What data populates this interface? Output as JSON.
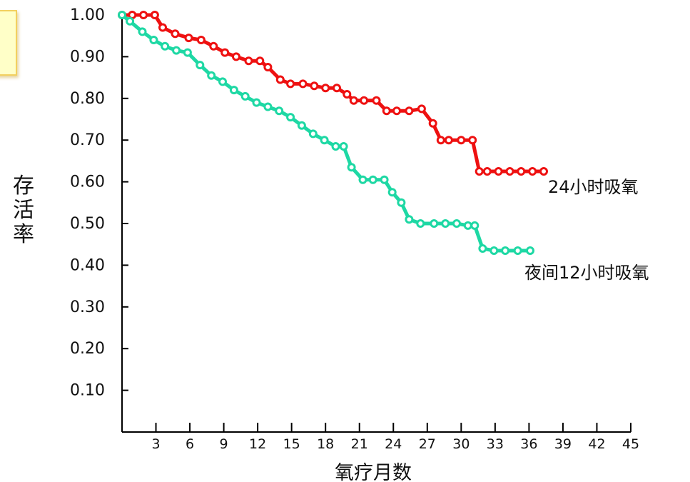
{
  "chart_data": {
    "type": "line",
    "title": "",
    "xlabel": "氧疗月数",
    "ylabel": "存活率",
    "xlim": [
      0,
      45
    ],
    "ylim": [
      0,
      1.0
    ],
    "x_ticks": [
      3,
      6,
      9,
      12,
      15,
      18,
      21,
      24,
      27,
      30,
      33,
      36,
      39,
      42,
      45
    ],
    "x_tick_labels": [
      "3",
      "6",
      "9",
      "12",
      "15",
      "18",
      "21",
      "24",
      "27",
      "30",
      "33",
      "36",
      "39",
      "42",
      "45"
    ],
    "y_ticks": [
      0.1,
      0.2,
      0.3,
      0.4,
      0.5,
      0.6,
      0.7,
      0.8,
      0.9,
      1.0
    ],
    "y_tick_labels": [
      "0.10",
      "0.20",
      "0.30",
      "0.40",
      "0.50",
      "0.60",
      "0.70",
      "0.80",
      "0.90",
      "1.00"
    ],
    "grid": false,
    "series": [
      {
        "name": "24小时吸氧",
        "color": "#ee1111",
        "x": [
          0,
          0.9,
          1.9,
          2.9,
          3.6,
          4.7,
          5.9,
          7.0,
          8.1,
          9.1,
          10.1,
          11.2,
          12.2,
          12.9,
          14.0,
          14.9,
          16.0,
          17.0,
          18.0,
          19.0,
          19.9,
          20.5,
          21.4,
          22.5,
          23.4,
          24.3,
          25.4,
          26.5,
          27.5,
          28.2,
          28.9,
          30.0,
          31.0,
          31.6,
          32.3,
          33.3,
          34.3,
          35.3,
          36.3,
          37.3
        ],
        "y": [
          1.0,
          1.0,
          1.0,
          1.0,
          0.97,
          0.955,
          0.945,
          0.94,
          0.925,
          0.91,
          0.9,
          0.89,
          0.89,
          0.875,
          0.845,
          0.835,
          0.835,
          0.83,
          0.825,
          0.825,
          0.81,
          0.795,
          0.795,
          0.795,
          0.77,
          0.77,
          0.77,
          0.775,
          0.74,
          0.7,
          0.7,
          0.7,
          0.7,
          0.625,
          0.625,
          0.625,
          0.625,
          0.625,
          0.625,
          0.625
        ]
      },
      {
        "name": "夜间12小时吸氧",
        "color": "#1ed8a4",
        "x": [
          0,
          0.7,
          1.8,
          2.8,
          3.8,
          4.8,
          5.8,
          6.9,
          7.9,
          8.9,
          9.9,
          10.9,
          11.9,
          12.9,
          13.9,
          14.9,
          15.9,
          16.9,
          17.9,
          18.9,
          19.6,
          20.3,
          21.3,
          22.2,
          23.2,
          23.9,
          24.7,
          25.4,
          26.4,
          27.6,
          28.6,
          29.6,
          30.6,
          31.2,
          31.9,
          32.9,
          33.9,
          35.0,
          36.1
        ],
        "y": [
          1.0,
          0.985,
          0.96,
          0.94,
          0.925,
          0.915,
          0.91,
          0.88,
          0.855,
          0.84,
          0.82,
          0.805,
          0.79,
          0.78,
          0.77,
          0.755,
          0.735,
          0.715,
          0.7,
          0.685,
          0.685,
          0.635,
          0.605,
          0.605,
          0.605,
          0.575,
          0.55,
          0.51,
          0.5,
          0.5,
          0.5,
          0.5,
          0.495,
          0.495,
          0.44,
          0.435,
          0.435,
          0.435,
          0.435
        ]
      }
    ]
  }
}
